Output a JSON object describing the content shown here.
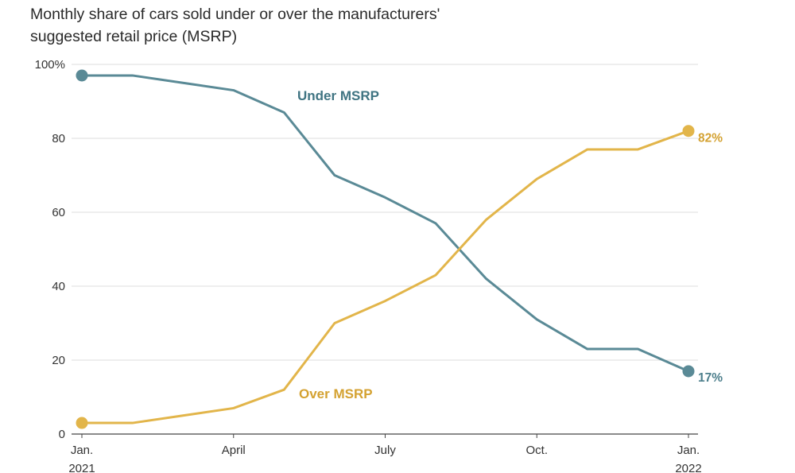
{
  "chart_data": {
    "type": "line",
    "title": "Monthly share of cars sold under or over the manufacturers' suggested retail price (MSRP)",
    "title_lines": [
      "Monthly share of cars sold under or over the manufacturers'",
      "suggested retail price (MSRP)"
    ],
    "xlabel": "",
    "ylabel": "",
    "x": [
      "2021-01",
      "2021-02",
      "2021-03",
      "2021-04",
      "2021-05",
      "2021-06",
      "2021-07",
      "2021-08",
      "2021-09",
      "2021-10",
      "2021-11",
      "2021-12",
      "2022-01"
    ],
    "x_ticks": [
      {
        "index": 0,
        "line1": "Jan.",
        "line2": "2021"
      },
      {
        "index": 3,
        "line1": "April",
        "line2": ""
      },
      {
        "index": 6,
        "line1": "July",
        "line2": ""
      },
      {
        "index": 9,
        "line1": "Oct.",
        "line2": ""
      },
      {
        "index": 12,
        "line1": "Jan.",
        "line2": "2022"
      }
    ],
    "y_ticks": [
      "0",
      "20",
      "40",
      "60",
      "80",
      "100%"
    ],
    "ylim": [
      0,
      100
    ],
    "grid": true,
    "series": [
      {
        "name": "Under MSRP",
        "color": "#5a8a96",
        "values": [
          97,
          97,
          95,
          93,
          87,
          70,
          64,
          57,
          42,
          31,
          23,
          23,
          17
        ],
        "end_label": "17%"
      },
      {
        "name": "Over MSRP",
        "color": "#e2b54a",
        "values": [
          3,
          3,
          5,
          7,
          12,
          30,
          36,
          43,
          58,
          69,
          77,
          77,
          82
        ],
        "end_label": "82%"
      }
    ],
    "label_colors": {
      "Under MSRP": "#3f7482",
      "Over MSRP": "#d4a232",
      "under_end": "#4d7f8c",
      "over_end": "#d4a232"
    }
  }
}
